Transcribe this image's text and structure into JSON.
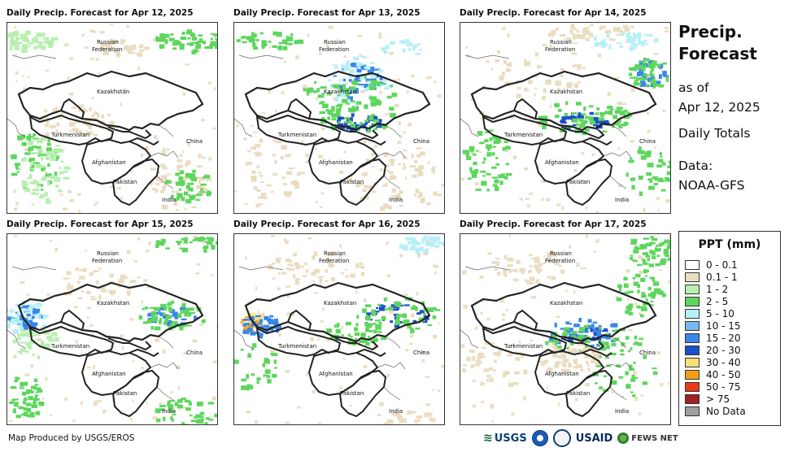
{
  "panels": [
    {
      "title": "Daily Precip. Forecast for Apr 12, 2025"
    },
    {
      "title": "Daily Precip. Forecast for Apr 13, 2025"
    },
    {
      "title": "Daily Precip. Forecast for Apr 14, 2025"
    },
    {
      "title": "Daily Precip. Forecast for Apr 15, 2025"
    },
    {
      "title": "Daily Precip. Forecast for Apr 16, 2025"
    },
    {
      "title": "Daily Precip. Forecast for Apr 17, 2025"
    }
  ],
  "map_labels": {
    "russia_1": "Russian",
    "russia_2": "Federation",
    "kazakhstan": "Kazakhstan",
    "turkmenistan": "Turkmenistan",
    "afghanistan": "Afghanistan",
    "pakistan": "Pakistan",
    "china": "China",
    "india": "India"
  },
  "side": {
    "title_line1": "Precip.",
    "title_line2": "Forecast",
    "asof_line1": "as of",
    "asof_line2": "Apr 12, 2025",
    "totals": "Daily Totals",
    "data_line1": "Data:",
    "data_line2": "NOAA-GFS"
  },
  "legend": {
    "title": "PPT (mm)",
    "items": [
      {
        "label": "0 - 0.1",
        "color": "#ffffff"
      },
      {
        "label": "0.1 - 1",
        "color": "#eadcc0"
      },
      {
        "label": "1 - 2",
        "color": "#b8efb0"
      },
      {
        "label": "2 - 5",
        "color": "#5ed65e"
      },
      {
        "label": "5 - 10",
        "color": "#b6f0f6"
      },
      {
        "label": "10 - 15",
        "color": "#7ab8f0"
      },
      {
        "label": "15 - 20",
        "color": "#3a86e8"
      },
      {
        "label": "20 - 30",
        "color": "#1a4fc8"
      },
      {
        "label": "30 - 40",
        "color": "#f6e07a"
      },
      {
        "label": "40 - 50",
        "color": "#f3a018"
      },
      {
        "label": "50 - 75",
        "color": "#e83a1a"
      },
      {
        "label": "> 75",
        "color": "#a52020"
      },
      {
        "label": "No Data",
        "color": "#a0a0a0"
      }
    ]
  },
  "footer": {
    "credit": "Map Produced by USGS/EROS",
    "logo_usgs": "USGS",
    "logo_usaid": "USAID",
    "logo_fews": "FEWS NET"
  }
}
